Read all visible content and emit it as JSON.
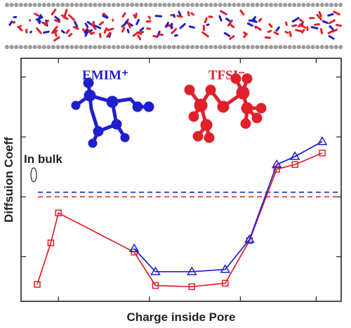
{
  "chart_data": {
    "type": "line",
    "title": "",
    "xlabel": "Charge inside Pore",
    "ylabel": "Diffsuion Coeff",
    "xlim": [
      0,
      10
    ],
    "ylim": [
      0,
      10
    ],
    "x_ticks": [
      1,
      4,
      7,
      9.5
    ],
    "y_ticks": [
      1.6,
      4.2,
      6.8,
      9.4
    ],
    "grid": false,
    "legend": "inline labels above the data",
    "series": [
      {
        "name": "EMIM⁺",
        "color": "#1f1fd0",
        "marker": "triangle",
        "points": [
          [
            3.5,
            1.95
          ],
          [
            4.2,
            0.95
          ],
          [
            5.4,
            0.95
          ],
          [
            6.5,
            1.05
          ],
          [
            7.3,
            2.35
          ],
          [
            8.2,
            5.6
          ],
          [
            8.8,
            5.95
          ],
          [
            9.7,
            6.6
          ]
        ],
        "bulk": 4.4
      },
      {
        "name": "TFSI⁻",
        "color": "#e0202a",
        "marker": "square",
        "points": [
          [
            0.3,
            0.4
          ],
          [
            0.75,
            2.2
          ],
          [
            1.0,
            3.5
          ],
          [
            3.5,
            1.8
          ],
          [
            4.2,
            0.35
          ],
          [
            5.4,
            0.3
          ],
          [
            6.5,
            0.45
          ],
          [
            7.3,
            2.3
          ],
          [
            8.2,
            5.4
          ],
          [
            8.8,
            5.6
          ],
          [
            9.7,
            6.1
          ]
        ],
        "bulk": 4.2
      }
    ],
    "annotations": [
      {
        "text": "In bulk"
      }
    ]
  }
}
